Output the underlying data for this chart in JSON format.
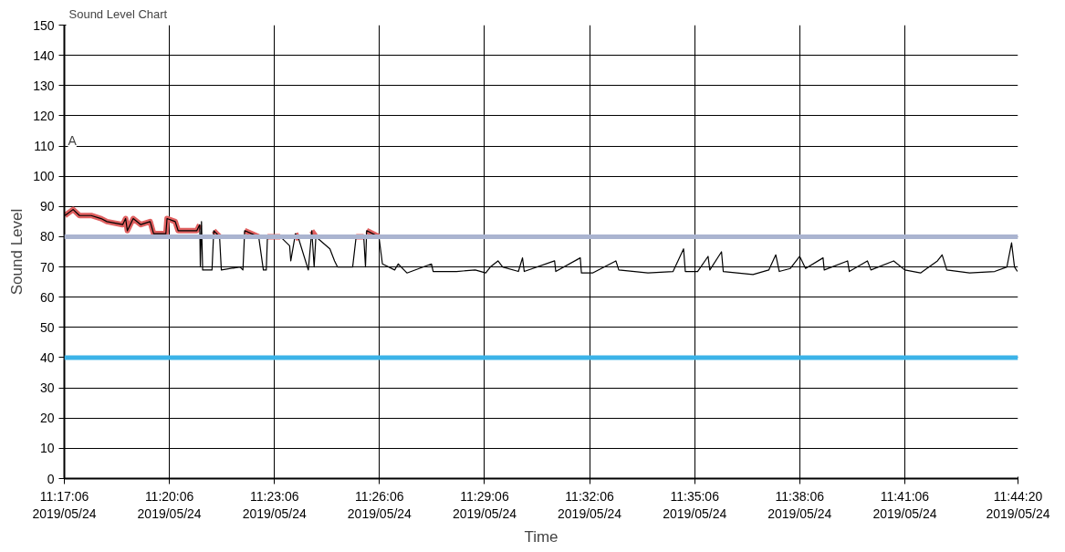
{
  "chart_data": {
    "type": "line",
    "title": "Sound Level Chart",
    "xlabel": "Time",
    "ylabel": "Sound Level",
    "annotations": [
      "A"
    ],
    "xlim": [
      "2019-05-24T11:17:06",
      "2019-05-24T11:44:20"
    ],
    "ylim": [
      0,
      150
    ],
    "xticks": [
      {
        "value": "2019-05-24T11:17:06",
        "label": "11:17:06\n2019/05/24"
      },
      {
        "value": "2019-05-24T11:20:06",
        "label": "11:20:06\n2019/05/24"
      },
      {
        "value": "2019-05-24T11:23:06",
        "label": "11:23:06\n2019/05/24"
      },
      {
        "value": "2019-05-24T11:26:06",
        "label": "11:26:06\n2019/05/24"
      },
      {
        "value": "2019-05-24T11:29:06",
        "label": "11:29:06\n2019/05/24"
      },
      {
        "value": "2019-05-24T11:32:06",
        "label": "11:32:06\n2019/05/24"
      },
      {
        "value": "2019-05-24T11:35:06",
        "label": "11:35:06\n2019/05/24"
      },
      {
        "value": "2019-05-24T11:38:06",
        "label": "11:38:06\n2019/05/24"
      },
      {
        "value": "2019-05-24T11:41:06",
        "label": "11:41:06\n2019/05/24"
      },
      {
        "value": "2019-05-24T11:44:20",
        "label": "11:44:20\n2019/05/24"
      }
    ],
    "yticks": [
      0,
      10,
      20,
      30,
      40,
      50,
      60,
      70,
      80,
      90,
      100,
      110,
      120,
      130,
      140,
      150
    ],
    "grid": true,
    "line_style": "solid",
    "ref_lines": [
      {
        "axis": "y",
        "value": 80,
        "label": null,
        "color": "#aab4d0"
      },
      {
        "axis": "y",
        "value": 40,
        "label": null,
        "color": "#3bb3e8"
      }
    ],
    "series": [
      {
        "color": "#e06060",
        "x": [
          "2019-05-24T11:17:07",
          "2019-05-24T11:17:21",
          "2019-05-24T11:17:32",
          "2019-05-24T11:17:52",
          "2019-05-24T11:18:09",
          "2019-05-24T11:18:19",
          "2019-05-24T11:18:46",
          "2019-05-24T11:18:51",
          "2019-05-24T11:18:54",
          "2019-05-24T11:19:04",
          "2019-05-24T11:19:17",
          "2019-05-24T11:19:33",
          "2019-05-24T11:19:39",
          "2019-05-24T11:20:00",
          "2019-05-24T11:20:02",
          "2019-05-24T11:20:16",
          "2019-05-24T11:20:21",
          "2019-05-24T11:20:53",
          "2019-05-24T11:20:58",
          "2019-05-24T11:20:59",
          "2019-05-24T11:21:22",
          "2019-05-24T11:21:32",
          "2019-05-24T11:21:33",
          "2019-05-24T11:22:15",
          "2019-05-24T11:22:39",
          "2019-05-24T11:22:40",
          "2019-05-24T11:22:54",
          "2019-05-24T11:23:16",
          "2019-05-24T11:23:17",
          "2019-05-24T11:23:42",
          "2019-05-24T11:23:48",
          "2019-05-24T11:23:49",
          "2019-05-24T11:24:10",
          "2019-05-24T11:24:17",
          "2019-05-24T11:24:18",
          "2019-05-24T11:25:26",
          "2019-05-24T11:25:39",
          "2019-05-24T11:25:42",
          "2019-05-24T11:25:44",
          "2019-05-24T11:26:05"
        ],
        "values": [
          87,
          89,
          87,
          87,
          86,
          85,
          84,
          86,
          82,
          86,
          84,
          85,
          81,
          81,
          86,
          85,
          82,
          82,
          84,
          null,
          82,
          80,
          null,
          82,
          80,
          null,
          80,
          80,
          null,
          81,
          79,
          null,
          82,
          80,
          null,
          80,
          80,
          null,
          82,
          80
        ]
      },
      {
        "color": "#000000",
        "x": [
          "2019-05-24T11:17:07",
          "2019-05-24T11:17:21",
          "2019-05-24T11:17:32",
          "2019-05-24T11:17:52",
          "2019-05-24T11:18:09",
          "2019-05-24T11:18:19",
          "2019-05-24T11:18:46",
          "2019-05-24T11:18:51",
          "2019-05-24T11:18:54",
          "2019-05-24T11:19:04",
          "2019-05-24T11:19:17",
          "2019-05-24T11:19:33",
          "2019-05-24T11:19:39",
          "2019-05-24T11:20:00",
          "2019-05-24T11:20:02",
          "2019-05-24T11:20:16",
          "2019-05-24T11:20:21",
          "2019-05-24T11:20:53",
          "2019-05-24T11:20:58",
          "2019-05-24T11:20:59",
          "2019-05-24T11:21:01",
          "2019-05-24T11:21:03",
          "2019-05-24T11:21:19",
          "2019-05-24T11:21:22",
          "2019-05-24T11:21:32",
          "2019-05-24T11:21:35",
          "2019-05-24T11:22:07",
          "2019-05-24T11:22:12",
          "2019-05-24T11:22:15",
          "2019-05-24T11:22:39",
          "2019-05-24T11:22:47",
          "2019-05-24T11:22:52",
          "2019-05-24T11:22:54",
          "2019-05-24T11:23:16",
          "2019-05-24T11:23:32",
          "2019-05-24T11:23:34",
          "2019-05-24T11:23:42",
          "2019-05-24T11:23:48",
          "2019-05-24T11:24:04",
          "2019-05-24T11:24:10",
          "2019-05-24T11:24:14",
          "2019-05-24T11:24:17",
          "2019-05-24T11:24:41",
          "2019-05-24T11:24:49",
          "2019-05-24T11:24:54",
          "2019-05-24T11:25:20",
          "2019-05-24T11:25:26",
          "2019-05-24T11:25:39",
          "2019-05-24T11:25:42",
          "2019-05-24T11:25:44",
          "2019-05-24T11:26:05",
          "2019-05-24T11:26:11",
          "2019-05-24T11:26:32",
          "2019-05-24T11:26:38",
          "2019-05-24T11:26:53",
          "2019-05-24T11:27:35",
          "2019-05-24T11:27:38",
          "2019-05-24T11:28:18",
          "2019-05-24T11:28:50",
          "2019-05-24T11:29:08",
          "2019-05-24T11:29:16",
          "2019-05-24T11:29:29",
          "2019-05-24T11:29:37",
          "2019-05-24T11:30:04",
          "2019-05-24T11:30:11",
          "2019-05-24T11:30:14",
          "2019-05-24T11:31:06",
          "2019-05-24T11:31:08",
          "2019-05-24T11:31:50",
          "2019-05-24T11:31:52",
          "2019-05-24T11:32:11",
          "2019-05-24T11:32:51",
          "2019-05-24T11:32:56",
          "2019-05-24T11:33:46",
          "2019-05-24T11:34:29",
          "2019-05-24T11:34:47",
          "2019-05-24T11:34:50",
          "2019-05-24T11:35:11",
          "2019-05-24T11:35:29",
          "2019-05-24T11:35:32",
          "2019-05-24T11:35:52",
          "2019-05-24T11:35:55",
          "2019-05-24T11:36:46",
          "2019-05-24T11:37:13",
          "2019-05-24T11:37:25",
          "2019-05-24T11:37:31",
          "2019-05-24T11:37:50",
          "2019-05-24T11:38:06",
          "2019-05-24T11:38:16",
          "2019-05-24T11:38:46",
          "2019-05-24T11:38:48",
          "2019-05-24T11:39:28",
          "2019-05-24T11:39:31",
          "2019-05-24T11:40:02",
          "2019-05-24T11:40:08",
          "2019-05-24T11:40:47",
          "2019-05-24T11:41:06",
          "2019-05-24T11:41:33",
          "2019-05-24T11:42:02",
          "2019-05-24T11:42:10",
          "2019-05-24T11:42:18",
          "2019-05-24T11:42:57",
          "2019-05-24T11:43:40",
          "2019-05-24T11:44:01",
          "2019-05-24T11:44:09",
          "2019-05-24T11:44:14",
          "2019-05-24T11:44:19"
        ],
        "values": [
          87,
          89,
          87,
          87,
          86,
          85,
          84,
          86,
          82,
          86,
          84,
          85,
          81,
          81,
          86,
          85,
          82,
          82,
          84,
          70,
          85,
          69,
          69,
          82,
          80,
          69,
          70,
          69,
          82,
          80,
          69,
          69,
          80,
          80,
          77,
          72,
          81,
          79,
          69,
          82,
          70,
          80,
          76,
          72,
          70,
          70,
          80,
          80,
          70,
          82,
          80,
          71,
          69,
          71,
          68,
          71,
          68.5,
          68.5,
          69,
          68,
          70,
          72,
          70,
          68.5,
          73,
          68.5,
          72,
          68.5,
          73,
          68,
          68,
          72,
          69,
          68,
          68.5,
          76,
          68.5,
          68.5,
          73.5,
          69,
          75,
          68.5,
          67.5,
          69,
          74,
          68.5,
          69.5,
          73.5,
          69.5,
          73,
          69,
          72,
          68.5,
          72,
          69,
          72,
          69,
          68,
          72,
          74,
          69,
          68,
          68.5,
          70,
          78,
          70,
          68.5
        ]
      }
    ]
  }
}
